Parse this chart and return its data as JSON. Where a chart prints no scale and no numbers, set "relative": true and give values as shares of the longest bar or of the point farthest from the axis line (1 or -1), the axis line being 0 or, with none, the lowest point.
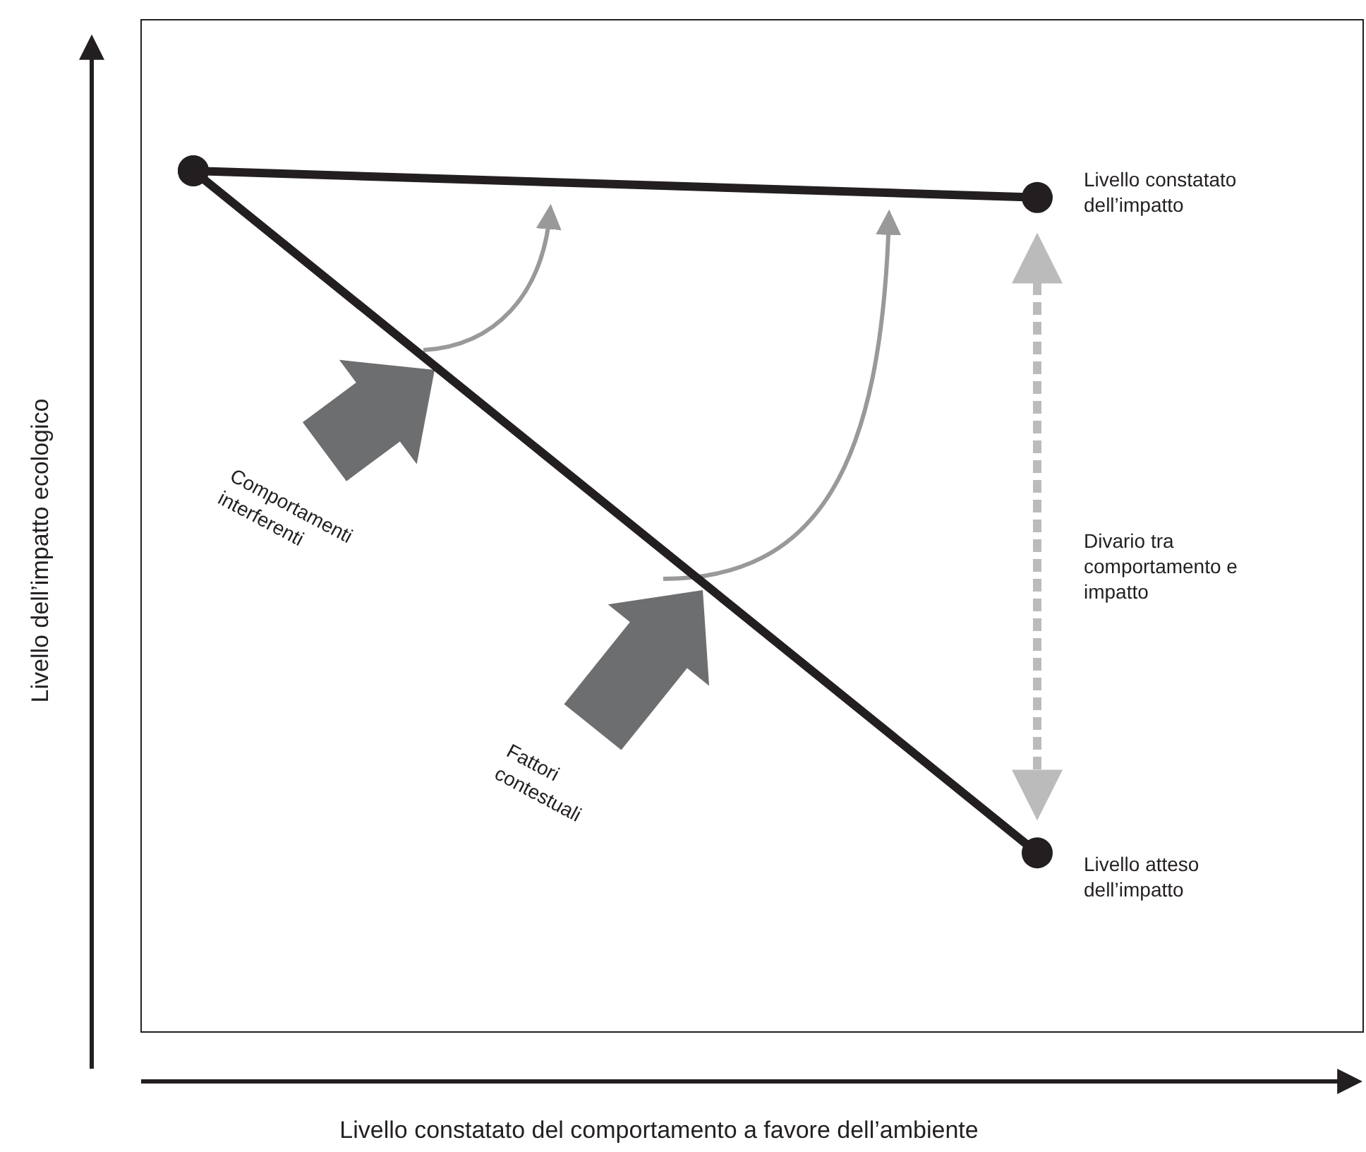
{
  "chart_data": {
    "type": "line",
    "relative": true,
    "categories": [
      null,
      null
    ],
    "series": [
      {
        "color": "#231f20",
        "values": [
          1,
          0.969
        ]
      },
      {
        "color": "#231f20",
        "values": [
          1,
          0.208
        ]
      }
    ],
    "marker": "circle",
    "line_style": "solid",
    "tick_labels": false,
    "xlabel": "Livello constatato del comportamento a favore dell’ambiente",
    "ylabel": "Livello dell’impatto ecologico",
    "annotations": [
      "Livello constatato dell’impatto",
      "Livello atteso dell’impatto",
      "Divario tra comportamento e impatto",
      "Comportamenti interferenti",
      "Fattori contestuali"
    ]
  }
}
